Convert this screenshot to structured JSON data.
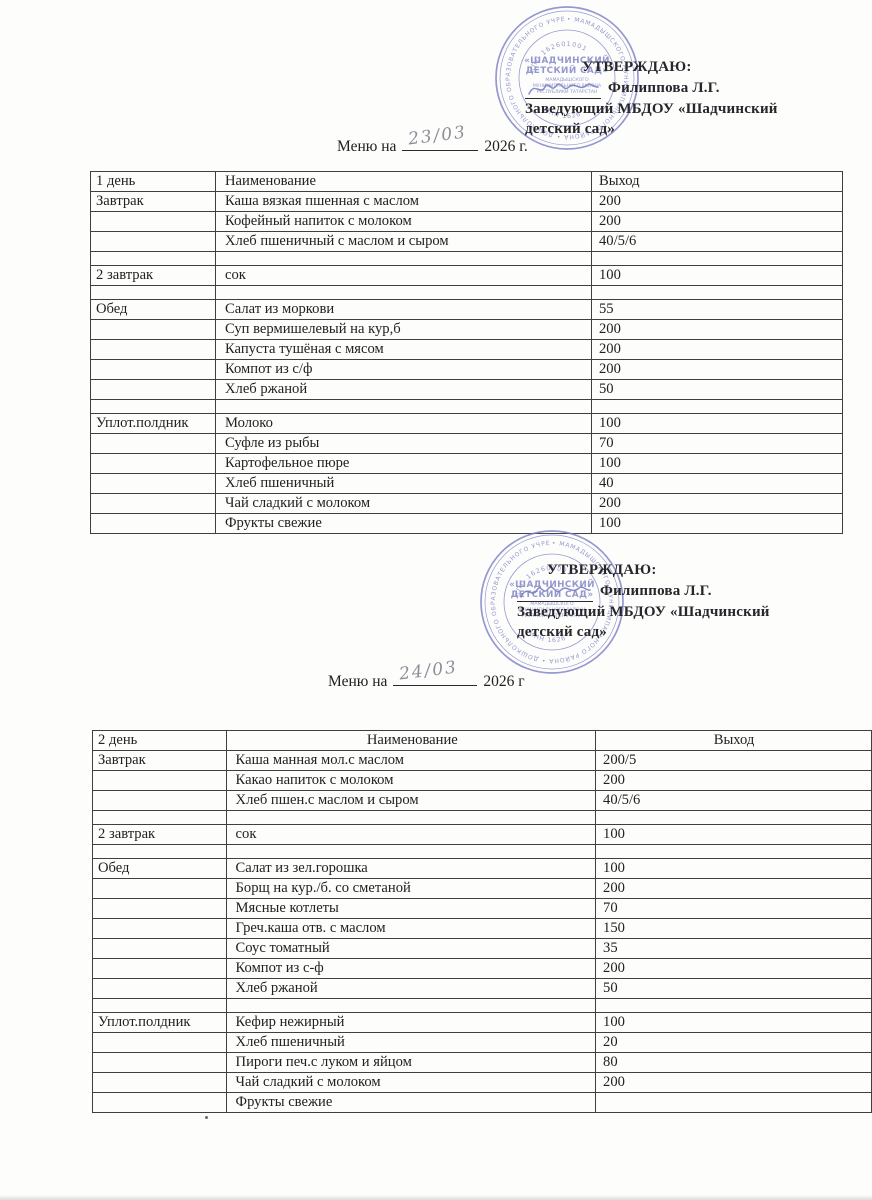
{
  "colors": {
    "stamp": "#7a80c4",
    "ink": "#21211e",
    "pencil": "#8d8d97",
    "table_border": "#3f3f3f"
  },
  "approval": {
    "title": "УТВЕРЖДАЮ:",
    "name": "Филиппова Л.Г.",
    "position_line1": "Заведующий МБДОУ «Шадчинский",
    "position_line2": "детский сад»"
  },
  "stamp": {
    "ring_text": "• МАМАДЫШСКОГО МУНИЦИПАЛЬНОГО РАЙОНА • ДОШКОЛЬНОГО ОБРАЗОВАТЕЛЬНОГО УЧРЕЖДЕНИЯ",
    "kpp": "КПП 162601001",
    "inn": "ИНН 1626",
    "center_line1": "«ШАДЧИНСКИЙ",
    "center_line2": "ДЕТСКИЙ САД»",
    "center_line3": "МАМАДЫШСКОГО",
    "center_line4": "МУНИЦИПАЛЬНОГО РАЙОНА",
    "center_line5": "РЕСПУБЛИКИ ТАТАРСТАН"
  },
  "menus": [
    {
      "date_prefix": "Меню на",
      "date_handwritten": "23/03",
      "date_suffix": "2026 г.",
      "table": {
        "headers": [
          "1 день",
          "Наименование",
          "Выход"
        ],
        "rows": [
          [
            "Завтрак",
            "Каша вязкая пшенная с маслом",
            "200"
          ],
          [
            "",
            "Кофейный напиток с молоком",
            "200"
          ],
          [
            "",
            "Хлеб пшеничный с маслом и сыром",
            "40/5/6"
          ],
          [
            "",
            "",
            ""
          ],
          [
            "2 завтрак",
            "сок",
            "100"
          ],
          [
            "",
            "",
            ""
          ],
          [
            "Обед",
            "Салат из моркови",
            "55"
          ],
          [
            "",
            "Суп вермишелевый на кур,б",
            "200"
          ],
          [
            "",
            "Капуста тушёная с мясом",
            "200"
          ],
          [
            "",
            "Компот из с/ф",
            "200"
          ],
          [
            "",
            "Хлеб ржаной",
            "50"
          ],
          [
            "",
            "",
            ""
          ],
          [
            "Уплот.полдник",
            "Молоко",
            "100"
          ],
          [
            "",
            "Суфле из рыбы",
            "70"
          ],
          [
            "",
            "Картофельное пюре",
            "100"
          ],
          [
            "",
            "Хлеб пшеничный",
            "40"
          ],
          [
            "",
            "Чай сладкий с молоком",
            "200"
          ],
          [
            "",
            "Фрукты свежие",
            "100"
          ]
        ]
      }
    },
    {
      "date_prefix": "Меню на",
      "date_handwritten": "24/03",
      "date_suffix": "2026 г",
      "table": {
        "headers": [
          "2 день",
          "Наименование",
          "Выход"
        ],
        "rows": [
          [
            "Завтрак",
            "Каша манная мол.с маслом",
            "200/5"
          ],
          [
            "",
            "Какао напиток с молоком",
            "200"
          ],
          [
            "",
            "Хлеб пшен.с маслом и сыром",
            "40/5/6"
          ],
          [
            "",
            "",
            ""
          ],
          [
            "2 завтрак",
            "сок",
            "100"
          ],
          [
            "",
            "",
            ""
          ],
          [
            "Обед",
            "Салат из зел.горошка",
            "100"
          ],
          [
            "",
            "Борщ на кур./б. со сметаной",
            "200"
          ],
          [
            "",
            "Мясные котлеты",
            "70"
          ],
          [
            "",
            "Греч.каша отв. с маслом",
            "150"
          ],
          [
            "",
            "Соус томатный",
            "35"
          ],
          [
            "",
            "Компот из с-ф",
            "200"
          ],
          [
            "",
            "Хлеб ржаной",
            "50"
          ],
          [
            "",
            "",
            ""
          ],
          [
            "Уплот.полдник",
            "Кефир нежирный",
            "100"
          ],
          [
            "",
            "Хлеб пшеничный",
            "20"
          ],
          [
            "",
            "Пироги печ.с луком и яйцом",
            "80"
          ],
          [
            "",
            "Чай сладкий с молоком",
            "200"
          ],
          [
            "",
            "Фрукты свежие",
            ""
          ]
        ]
      }
    }
  ],
  "table_layout": {
    "t1_col_widths": [
      113,
      360,
      237
    ],
    "t2_col_widths": [
      123,
      362,
      273
    ]
  }
}
